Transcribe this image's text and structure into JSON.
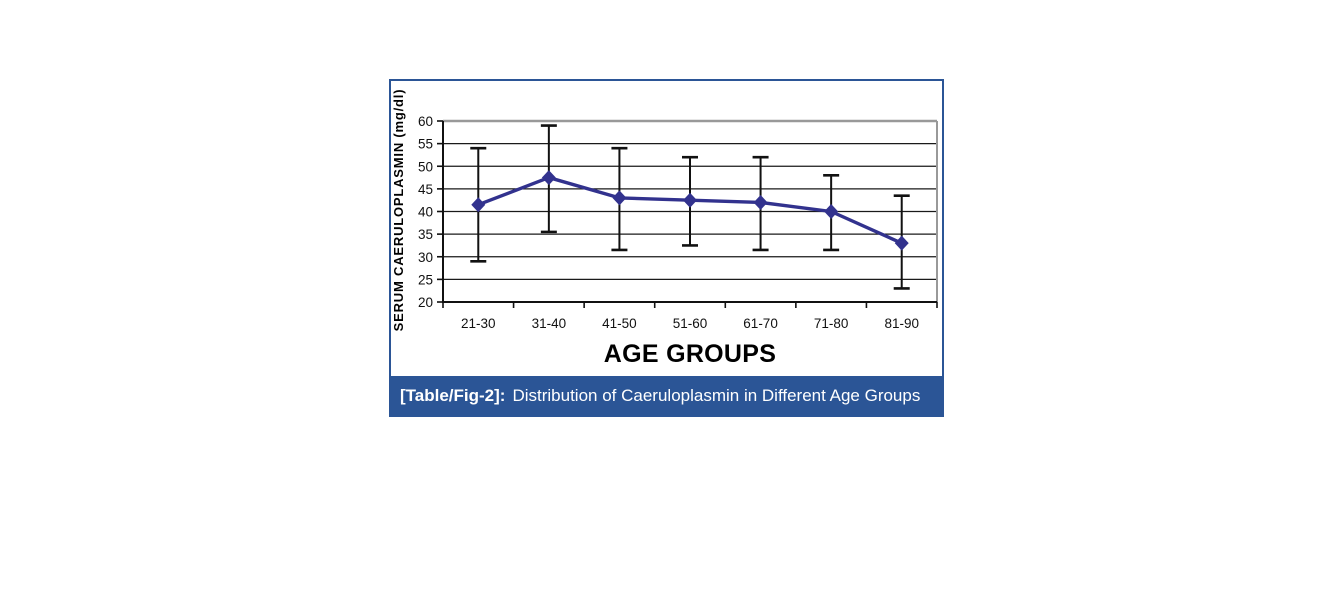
{
  "figure": {
    "caption": {
      "label": "[Table/Fig-2]:",
      "text": "Distribution of Caeruloplasmin in Different Age Groups"
    },
    "colors": {
      "caption_bg": "#2b5596",
      "caption_fg": "#ffffff",
      "border": "#2b5596"
    }
  },
  "chart_data": {
    "type": "line",
    "title": "",
    "xlabel": "AGE GROUPS",
    "ylabel": "SERUM CAERULOPLASMIN (mg/dl)",
    "categories": [
      "21-30",
      "31-40",
      "41-50",
      "51-60",
      "61-70",
      "71-80",
      "81-90"
    ],
    "series": [
      {
        "values": [
          41.5,
          47.5,
          43,
          42.5,
          42,
          40,
          33
        ],
        "error_upper": [
          54,
          59,
          54,
          52,
          52,
          48,
          43.5
        ],
        "error_lower": [
          29,
          35.5,
          31.5,
          32.5,
          31.5,
          31.5,
          23
        ]
      }
    ],
    "ylim": [
      20,
      60
    ],
    "yticks": [
      20,
      25,
      30,
      35,
      40,
      45,
      50,
      55,
      60
    ],
    "grid": "horizontal",
    "legend": "none",
    "colors": {
      "line": "#32328e",
      "marker": "#32328e",
      "error_bar": "#111111",
      "grid": "#1a1a1a",
      "axis": "#111111",
      "plot_border": "#999999"
    }
  }
}
